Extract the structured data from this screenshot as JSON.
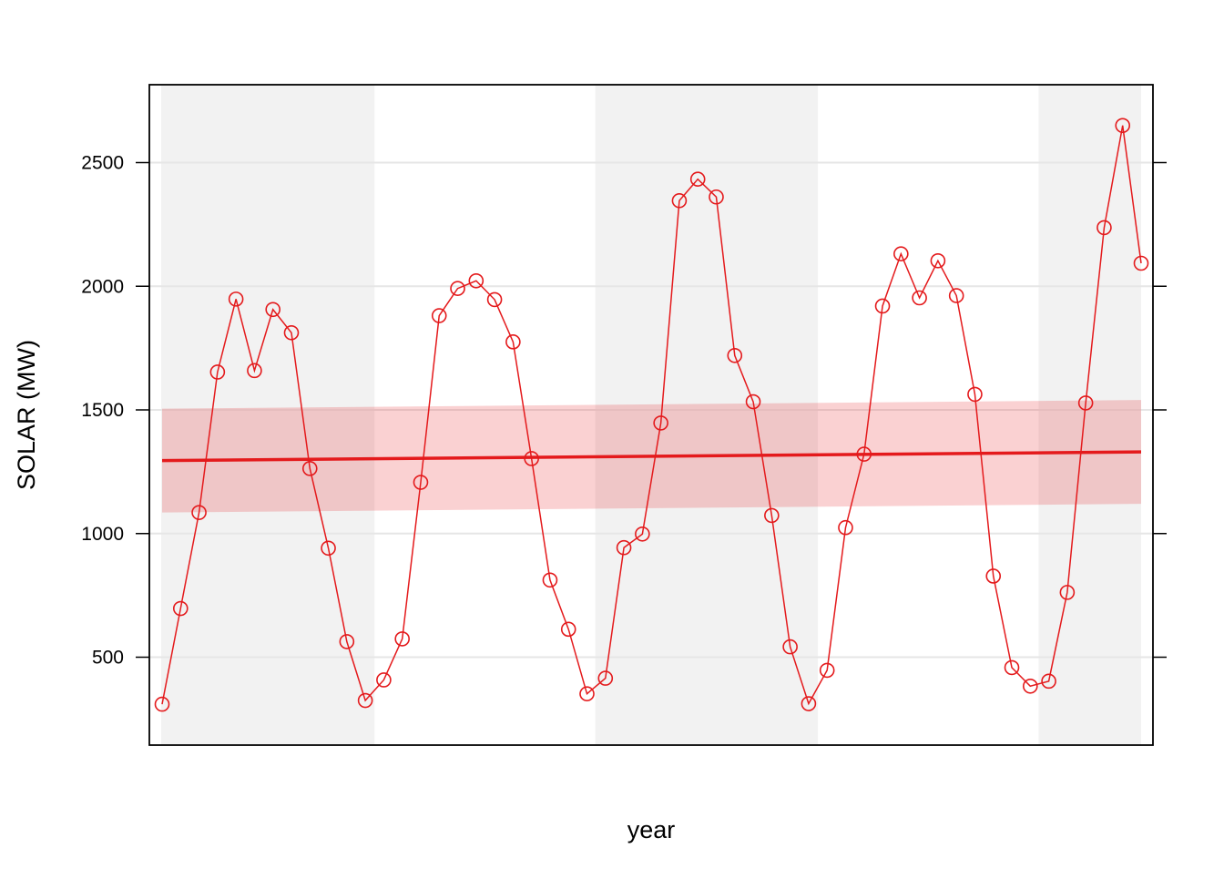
{
  "chart_data": {
    "type": "line",
    "title": "",
    "xlabel": "year",
    "ylabel": "SOLAR (MW)",
    "x": [
      1,
      2,
      3,
      4,
      5,
      6,
      7,
      8,
      9,
      10,
      11,
      12,
      13,
      14,
      15,
      16,
      17,
      18,
      19,
      20,
      21,
      22,
      23,
      24,
      25,
      26,
      27,
      28,
      29,
      30,
      31,
      32,
      33,
      34,
      35,
      36,
      37,
      38,
      39,
      40,
      41,
      42,
      43,
      44,
      45,
      46,
      47,
      48,
      49,
      50,
      51,
      52,
      53,
      54
    ],
    "series": [
      {
        "values": [
          310,
          697,
          1085,
          1653,
          1948,
          1659,
          1906,
          1812,
          1263,
          941,
          563,
          325,
          408,
          574,
          1207,
          1881,
          1991,
          2022,
          1946,
          1775,
          1303,
          812,
          613,
          352,
          415,
          943,
          998,
          1447,
          2346,
          2433,
          2361,
          1720,
          1533,
          1073,
          542,
          312,
          447,
          1024,
          1321,
          1920,
          2131,
          1953,
          2103,
          1962,
          1563,
          828,
          458,
          383,
          403,
          762,
          1528,
          2237,
          2650,
          2093
        ]
      }
    ],
    "trend": {
      "start": 1295,
      "end": 1330
    },
    "confidence_band": {
      "lower_start": 1085,
      "lower_end": 1120,
      "upper_start": 1505,
      "upper_end": 1540
    },
    "year_shading_bands": [
      [
        1,
        12.5
      ],
      [
        24.5,
        36.5
      ],
      [
        48.5,
        54
      ]
    ],
    "ylim": [
      150,
      2800
    ],
    "yticks": [
      500,
      1000,
      1500,
      2000,
      2500
    ],
    "grid": true,
    "colors": {
      "series": "#E41A1C",
      "band": "rgba(228,26,28,0.2)",
      "shade": "#f2f2f2",
      "grid": "#e6e6e6"
    }
  }
}
